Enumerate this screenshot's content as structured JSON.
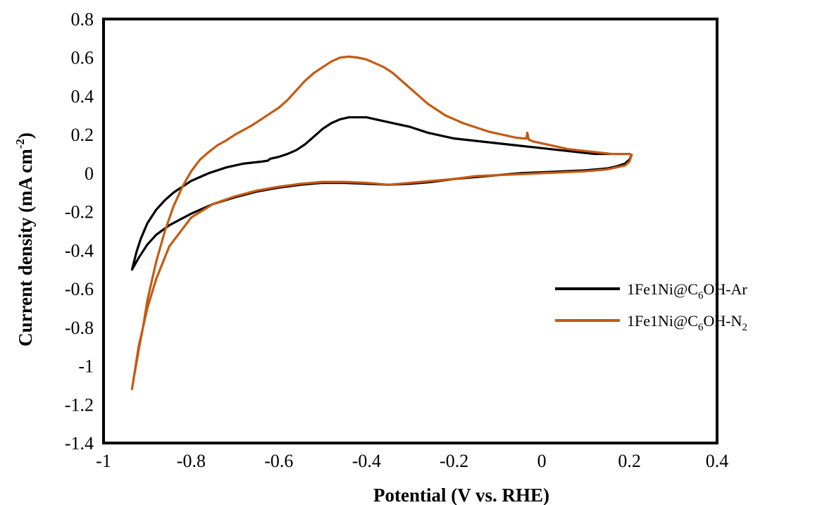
{
  "chart_data": {
    "type": "line",
    "xlabel": "Potential (V vs. RHE)",
    "ylabel": {
      "prefix": "Current density (mA cm",
      "sup": "-2",
      "suffix": ")"
    },
    "xlim": [
      -1,
      0.4
    ],
    "ylim": [
      -1.4,
      0.8
    ],
    "x_ticks": [
      "-1",
      "-0.8",
      "-0.6",
      "-0.4",
      "-0.2",
      "0",
      "0.2",
      "0.4"
    ],
    "y_ticks": [
      "0.8",
      "0.6",
      "0.4",
      "0.2",
      "0",
      "-0.2",
      "-0.4",
      "-0.6",
      "-0.8",
      "-1",
      "-1.2",
      "-1.4"
    ],
    "grid": false,
    "legend_placement": "right",
    "series": [
      {
        "name": "1Fe1Ni@C6OH-Ar",
        "legend": {
          "p1": "1Fe1Ni@C",
          "sub1": "6",
          "p2": "OH-Ar",
          "sub2": "",
          "p3": ""
        },
        "color": "#000000",
        "x": [
          -0.935,
          -0.925,
          -0.915,
          -0.9,
          -0.88,
          -0.86,
          -0.84,
          -0.82,
          -0.8,
          -0.78,
          -0.76,
          -0.74,
          -0.72,
          -0.7,
          -0.68,
          -0.66,
          -0.64,
          -0.625,
          -0.62,
          -0.6,
          -0.58,
          -0.56,
          -0.54,
          -0.52,
          -0.5,
          -0.48,
          -0.46,
          -0.44,
          -0.42,
          -0.4,
          -0.38,
          -0.36,
          -0.34,
          -0.32,
          -0.3,
          -0.28,
          -0.26,
          -0.24,
          -0.22,
          -0.2,
          -0.18,
          -0.16,
          -0.14,
          -0.12,
          -0.1,
          -0.08,
          -0.06,
          -0.04,
          -0.02,
          0.0,
          0.02,
          0.04,
          0.06,
          0.08,
          0.1,
          0.12,
          0.14,
          0.16,
          0.18,
          0.2,
          0.205,
          0.2,
          0.19,
          0.17,
          0.15,
          0.1,
          0.05,
          0.0,
          -0.05,
          -0.1,
          -0.15,
          -0.2,
          -0.25,
          -0.3,
          -0.35,
          -0.4,
          -0.45,
          -0.5,
          -0.55,
          -0.6,
          -0.65,
          -0.7,
          -0.75,
          -0.8,
          -0.85,
          -0.88,
          -0.9,
          -0.92,
          -0.935
        ],
        "values": [
          -0.5,
          -0.41,
          -0.34,
          -0.26,
          -0.19,
          -0.14,
          -0.1,
          -0.07,
          -0.04,
          -0.02,
          0.0,
          0.015,
          0.03,
          0.04,
          0.05,
          0.055,
          0.06,
          0.065,
          0.075,
          0.085,
          0.1,
          0.12,
          0.15,
          0.19,
          0.23,
          0.26,
          0.28,
          0.29,
          0.29,
          0.29,
          0.28,
          0.27,
          0.26,
          0.25,
          0.24,
          0.225,
          0.21,
          0.2,
          0.19,
          0.18,
          0.175,
          0.17,
          0.165,
          0.16,
          0.155,
          0.15,
          0.145,
          0.14,
          0.135,
          0.13,
          0.125,
          0.12,
          0.115,
          0.11,
          0.105,
          0.1,
          0.1,
          0.1,
          0.1,
          0.1,
          0.095,
          0.07,
          0.05,
          0.035,
          0.025,
          0.015,
          0.01,
          0.005,
          0.0,
          -0.01,
          -0.02,
          -0.03,
          -0.045,
          -0.055,
          -0.06,
          -0.055,
          -0.05,
          -0.05,
          -0.06,
          -0.075,
          -0.095,
          -0.125,
          -0.16,
          -0.21,
          -0.27,
          -0.32,
          -0.37,
          -0.44,
          -0.5
        ]
      },
      {
        "name": "1Fe1Ni@C6OH-N2",
        "legend": {
          "p1": "1Fe1Ni@C",
          "sub1": "6",
          "p2": "OH-N",
          "sub2": "2",
          "p3": ""
        },
        "color": "#c55a11",
        "x": [
          -0.935,
          -0.93,
          -0.92,
          -0.91,
          -0.9,
          -0.88,
          -0.86,
          -0.84,
          -0.82,
          -0.8,
          -0.78,
          -0.76,
          -0.74,
          -0.72,
          -0.7,
          -0.68,
          -0.66,
          -0.64,
          -0.62,
          -0.6,
          -0.58,
          -0.56,
          -0.54,
          -0.52,
          -0.5,
          -0.48,
          -0.46,
          -0.44,
          -0.42,
          -0.4,
          -0.38,
          -0.36,
          -0.34,
          -0.32,
          -0.3,
          -0.28,
          -0.26,
          -0.24,
          -0.22,
          -0.2,
          -0.18,
          -0.16,
          -0.14,
          -0.12,
          -0.1,
          -0.08,
          -0.06,
          -0.04,
          -0.035,
          -0.033,
          -0.03,
          -0.02,
          0.0,
          0.02,
          0.04,
          0.06,
          0.08,
          0.1,
          0.12,
          0.14,
          0.16,
          0.18,
          0.2,
          0.205,
          0.2,
          0.19,
          0.17,
          0.15,
          0.1,
          0.05,
          0.0,
          -0.05,
          -0.1,
          -0.15,
          -0.2,
          -0.25,
          -0.3,
          -0.35,
          -0.4,
          -0.45,
          -0.5,
          -0.55,
          -0.6,
          -0.65,
          -0.7,
          -0.75,
          -0.8,
          -0.85,
          -0.88,
          -0.9,
          -0.92,
          -0.935
        ],
        "values": [
          -1.12,
          -1.05,
          -0.92,
          -0.8,
          -0.66,
          -0.46,
          -0.3,
          -0.17,
          -0.07,
          0.01,
          0.07,
          0.11,
          0.145,
          0.17,
          0.2,
          0.225,
          0.25,
          0.28,
          0.31,
          0.34,
          0.38,
          0.43,
          0.48,
          0.52,
          0.55,
          0.58,
          0.6,
          0.605,
          0.6,
          0.59,
          0.57,
          0.55,
          0.52,
          0.48,
          0.44,
          0.4,
          0.36,
          0.33,
          0.3,
          0.28,
          0.26,
          0.245,
          0.23,
          0.215,
          0.205,
          0.195,
          0.185,
          0.18,
          0.18,
          0.21,
          0.175,
          0.165,
          0.155,
          0.145,
          0.135,
          0.125,
          0.12,
          0.115,
          0.11,
          0.105,
          0.1,
          0.1,
          0.1,
          0.095,
          0.06,
          0.04,
          0.03,
          0.02,
          0.01,
          0.005,
          0.0,
          -0.005,
          -0.01,
          -0.015,
          -0.03,
          -0.04,
          -0.05,
          -0.06,
          -0.05,
          -0.045,
          -0.045,
          -0.055,
          -0.07,
          -0.09,
          -0.12,
          -0.16,
          -0.23,
          -0.38,
          -0.55,
          -0.7,
          -0.9,
          -1.12
        ]
      }
    ]
  }
}
